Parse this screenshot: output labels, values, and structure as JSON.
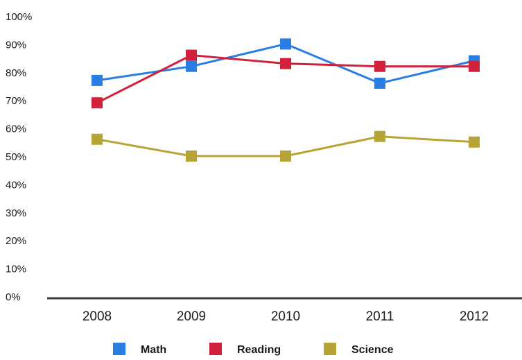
{
  "chart_data": {
    "type": "line",
    "x": [
      "2008",
      "2009",
      "2010",
      "2011",
      "2012"
    ],
    "y_ticks": [
      "0%",
      "10%",
      "20%",
      "30%",
      "40%",
      "50%",
      "60%",
      "70%",
      "80%",
      "90%",
      "100%"
    ],
    "ylim": [
      0,
      100
    ],
    "grid": false,
    "legend_position": "bottom",
    "series": [
      {
        "name": "Math",
        "color": "#2a7de1",
        "values": [
          77,
          82,
          90,
          76,
          84
        ]
      },
      {
        "name": "Reading",
        "color": "#d0213c",
        "values": [
          69,
          86,
          83,
          82,
          82
        ]
      },
      {
        "name": "Science",
        "color": "#b7a436",
        "values": [
          56,
          50,
          50,
          57,
          55
        ]
      }
    ]
  }
}
